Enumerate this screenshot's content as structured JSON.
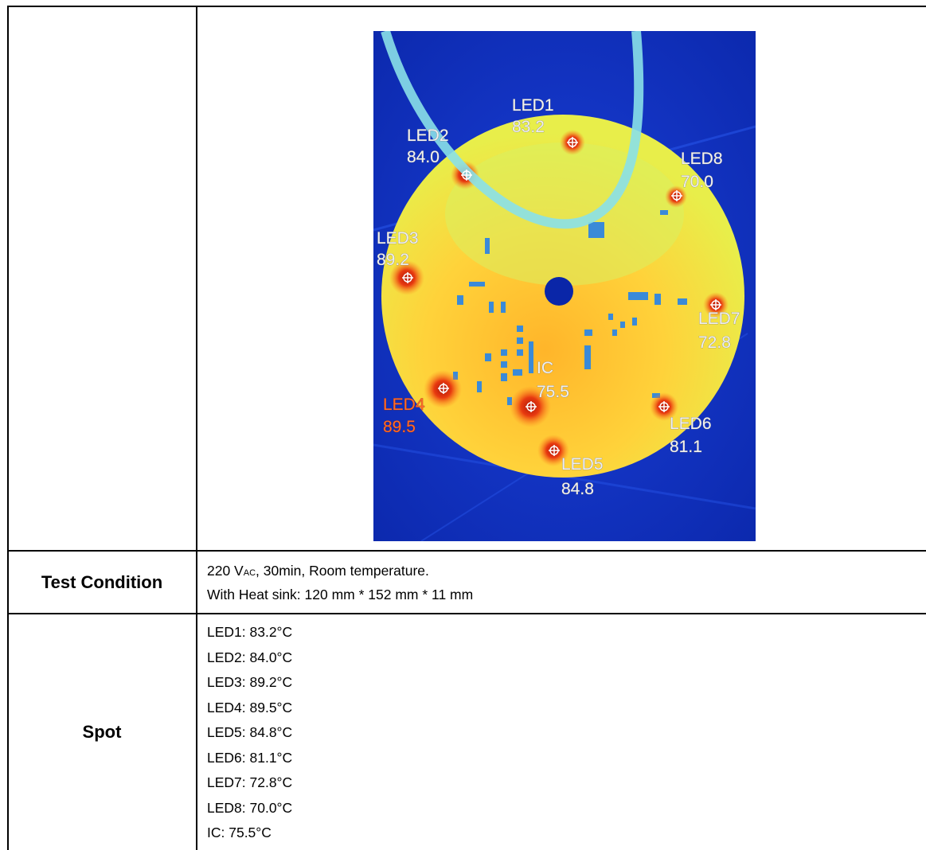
{
  "thermal_image": {
    "markers": [
      {
        "name": "LED1",
        "value": "83.2"
      },
      {
        "name": "LED2",
        "value": "84.0"
      },
      {
        "name": "LED3",
        "value": "89.2"
      },
      {
        "name": "LED4",
        "value": "89.5"
      },
      {
        "name": "LED5",
        "value": "84.8"
      },
      {
        "name": "LED6",
        "value": "81.1"
      },
      {
        "name": "LED7",
        "value": "72.8"
      },
      {
        "name": "LED8",
        "value": "70.0"
      },
      {
        "name": "IC",
        "value": "75.5"
      }
    ]
  },
  "test_condition": {
    "label": "Test Condition",
    "line1_prefix": "220 V",
    "line1_subscript": "AC",
    "line1_suffix": ", 30min, Room temperature.",
    "line2": "With Heat sink: 120 mm * 152 mm * 11 mm"
  },
  "spot": {
    "label": "Spot",
    "readings": [
      "LED1: 83.2°C",
      "LED2: 84.0°C",
      "LED3: 89.2°C",
      "LED4: 89.5°C",
      "LED5: 84.8°C",
      "LED6: 81.1°C",
      "LED7: 72.8°C",
      "LED8: 70.0°C",
      "IC: 75.5°C"
    ]
  }
}
